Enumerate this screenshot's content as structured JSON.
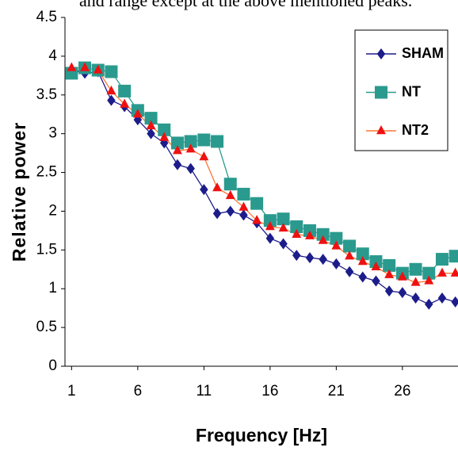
{
  "header_text": "and range except at the above mentioned peaks.",
  "chart_data": {
    "type": "line",
    "x_label": "Frequency [Hz]",
    "y_label": "Relative power",
    "x": [
      1,
      2,
      3,
      4,
      5,
      6,
      7,
      8,
      9,
      10,
      11,
      12,
      13,
      14,
      15,
      16,
      17,
      18,
      19,
      20,
      21,
      22,
      23,
      24,
      25,
      26,
      27,
      28,
      29,
      30
    ],
    "series": [
      {
        "name": "SHAM",
        "color": "#1c1c8a",
        "marker": "diamond",
        "values": [
          3.82,
          3.78,
          3.8,
          3.43,
          3.35,
          3.18,
          3.0,
          2.88,
          2.6,
          2.55,
          2.28,
          1.97,
          2.0,
          1.95,
          1.85,
          1.65,
          1.58,
          1.43,
          1.4,
          1.38,
          1.32,
          1.22,
          1.15,
          1.1,
          0.97,
          0.95,
          0.88,
          0.8,
          0.88,
          0.83
        ]
      },
      {
        "name": "NT",
        "color": "#2a9a8e",
        "marker": "square",
        "values": [
          3.78,
          3.85,
          3.82,
          3.8,
          3.55,
          3.3,
          3.2,
          3.05,
          2.88,
          2.9,
          2.92,
          2.9,
          2.35,
          2.22,
          2.1,
          1.88,
          1.9,
          1.8,
          1.75,
          1.7,
          1.65,
          1.55,
          1.45,
          1.35,
          1.3,
          1.2,
          1.25,
          1.2,
          1.38,
          1.42
        ]
      },
      {
        "name": "NT2",
        "color": "#ee1111",
        "line_color": "#ff7733",
        "marker": "triangle",
        "values": [
          3.85,
          3.85,
          3.82,
          3.55,
          3.38,
          3.25,
          3.1,
          2.95,
          2.78,
          2.8,
          2.7,
          2.3,
          2.2,
          2.05,
          1.88,
          1.8,
          1.78,
          1.7,
          1.68,
          1.62,
          1.55,
          1.42,
          1.35,
          1.28,
          1.18,
          1.15,
          1.08,
          1.1,
          1.2,
          1.2
        ]
      }
    ],
    "xlim": [
      0.5,
      30.2
    ],
    "ylim": [
      0,
      4.5
    ],
    "xticks": [
      1,
      6,
      11,
      16,
      21,
      26
    ],
    "yticks": [
      0,
      0.5,
      1,
      1.5,
      2,
      2.5,
      3,
      3.5,
      4,
      4.5
    ],
    "legend": "upper right",
    "grid": false
  }
}
